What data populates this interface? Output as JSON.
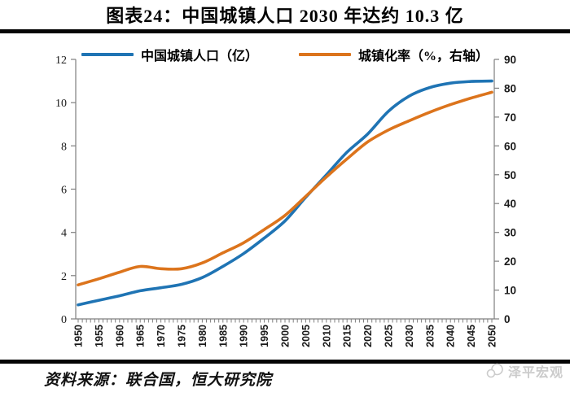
{
  "title": "图表24：中国城镇人口 2030 年达约 10.3 亿",
  "legend": [
    {
      "label": "中国城镇人口（亿）",
      "color": "#1F74B4"
    },
    {
      "label": "城镇化率（%，右轴）",
      "color": "#DC741C"
    }
  ],
  "source": "资料来源：联合国，恒大研究院",
  "watermark": "泽平宏观",
  "colors": {
    "population_line": "#1F74B4",
    "rate_line": "#DC741C",
    "axis": "#7F7F7F",
    "rule": "#050505",
    "watermark": "#cbcbcb"
  },
  "chart_data": {
    "type": "line",
    "title": "图表24：中国城镇人口 2030 年达约 10.3 亿",
    "x": [
      1950,
      1955,
      1960,
      1965,
      1970,
      1975,
      1980,
      1985,
      1990,
      1995,
      2000,
      2005,
      2010,
      2015,
      2020,
      2025,
      2030,
      2035,
      2040,
      2045,
      2050
    ],
    "series": [
      {
        "name": "中国城镇人口（亿）",
        "axis": "left",
        "color": "#1F74B4",
        "values": [
          0.65,
          0.86,
          1.07,
          1.3,
          1.44,
          1.6,
          1.91,
          2.43,
          3.02,
          3.74,
          4.53,
          5.62,
          6.66,
          7.71,
          8.55,
          9.6,
          10.3,
          10.7,
          10.9,
          10.98,
          11.0
        ]
      },
      {
        "name": "城镇化率（%，右轴）",
        "axis": "right",
        "color": "#DC741C",
        "values": [
          11.8,
          13.9,
          16.2,
          18.2,
          17.4,
          17.4,
          19.4,
          22.9,
          26.4,
          31.0,
          35.9,
          42.5,
          49.2,
          55.5,
          61.4,
          65.5,
          68.7,
          71.7,
          74.3,
          76.6,
          78.6
        ]
      }
    ],
    "left_axis": {
      "min": 0,
      "max": 12,
      "step": 2,
      "tick_labels": [
        "0",
        "2",
        "4",
        "6",
        "8",
        "10",
        "12"
      ]
    },
    "right_axis": {
      "min": 0,
      "max": 90,
      "step": 10,
      "tick_labels": [
        "0",
        "10",
        "20",
        "30",
        "40",
        "50",
        "60",
        "70",
        "80",
        "90"
      ]
    },
    "x_axis": {
      "min": 1950,
      "max": 2050,
      "label_step": 5,
      "minor_tick_step": 1,
      "labels_rotated_deg": -90
    },
    "grid": false,
    "legend_position": "top"
  }
}
